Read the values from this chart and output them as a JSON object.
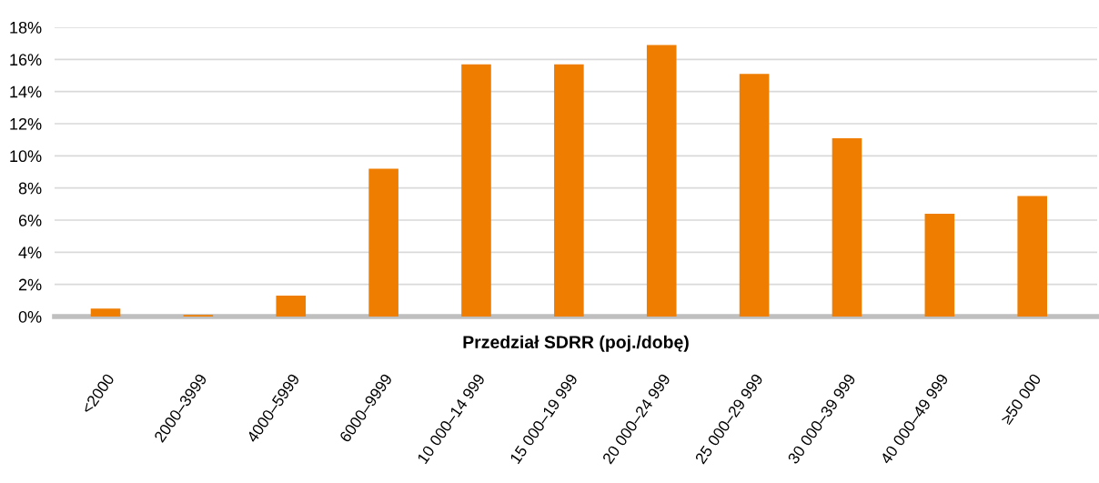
{
  "chart_data": {
    "type": "bar",
    "xlabel": "Przedział SDRR (poj./dobę)",
    "categories": [
      "<2000",
      "2000–3999",
      "4000–5999",
      "6000–9999",
      "10 000–14 999",
      "15 000–19 999",
      "20 000–24 999",
      "25 000–29 999",
      "30 000–39 999",
      "40 000–49 999",
      "≥50 000"
    ],
    "values": [
      0.5,
      0.1,
      1.3,
      9.2,
      15.7,
      15.7,
      16.9,
      15.1,
      11.1,
      6.4,
      7.5
    ],
    "color": "#ee7d00",
    "ylim": [
      0,
      18
    ],
    "yticks": [
      {
        "value": 0,
        "label": "0%"
      },
      {
        "value": 2,
        "label": "2%"
      },
      {
        "value": 4,
        "label": "4%"
      },
      {
        "value": 6,
        "label": "6%"
      },
      {
        "value": 8,
        "label": "8%"
      },
      {
        "value": 10,
        "label": "10%"
      },
      {
        "value": 12,
        "label": "12%"
      },
      {
        "value": 14,
        "label": "14%"
      },
      {
        "value": 16,
        "label": "16%"
      },
      {
        "value": 18,
        "label": "18%"
      }
    ],
    "grid": "y",
    "legend": false
  }
}
